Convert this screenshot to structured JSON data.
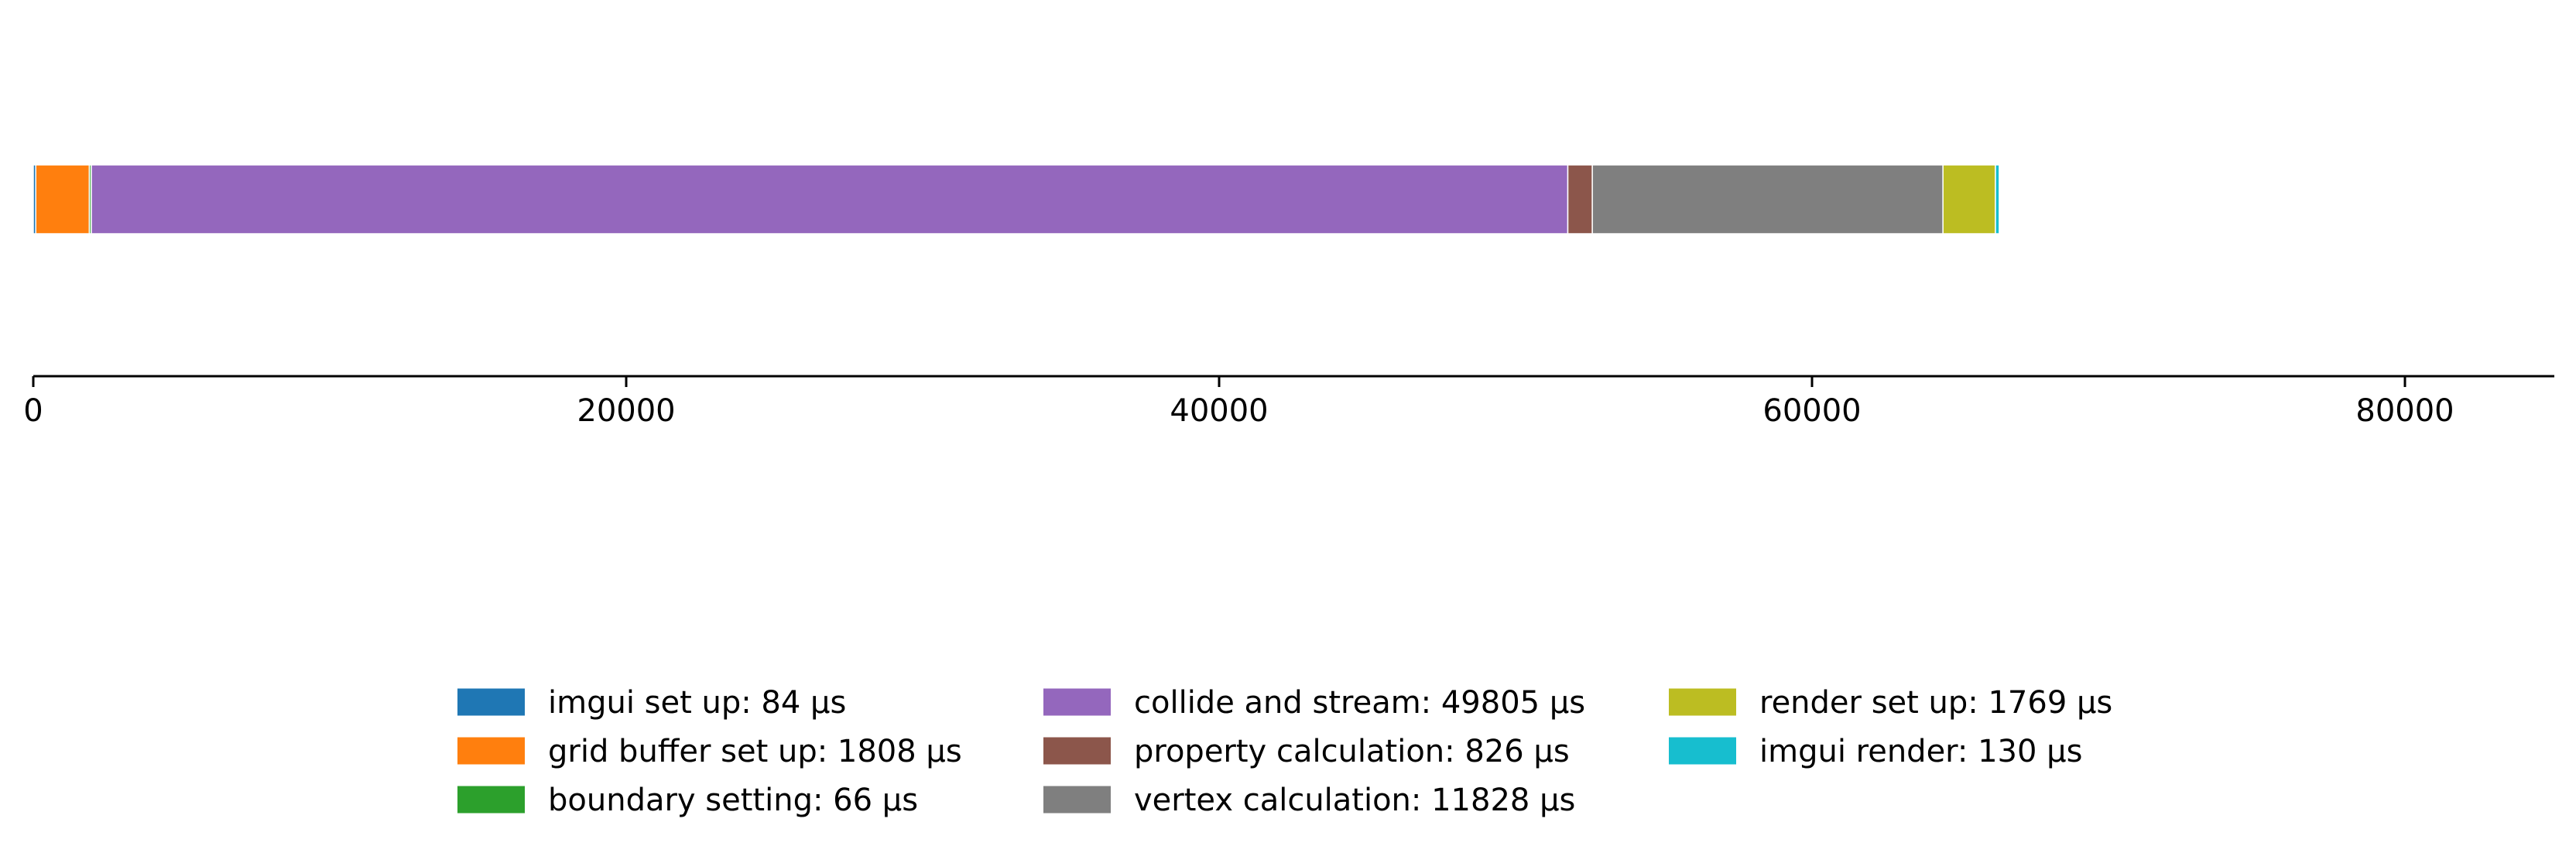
{
  "chart_data": {
    "type": "bar",
    "orientation": "horizontal",
    "stacked": true,
    "title": "",
    "xlabel": "",
    "ylabel": "",
    "xlim": [
      0,
      170000
    ],
    "x_ticks": [
      0,
      20000,
      40000,
      60000,
      80000,
      100000,
      120000,
      140000,
      160000
    ],
    "grid": false,
    "legend_position": "bottom-center",
    "legend_columns": 3,
    "series": [
      {
        "name": "imgui set up: 84 µs",
        "value": 84,
        "color": "#1f77b4"
      },
      {
        "name": "grid buffer set up: 1808 µs",
        "value": 1808,
        "color": "#ff7f0e"
      },
      {
        "name": "boundary setting: 66 µs",
        "value": 66,
        "color": "#2ca02c"
      },
      {
        "name": "collide and stream: 49805 µs",
        "value": 49805,
        "color": "#9467bd"
      },
      {
        "name": "property calculation: 826 µs",
        "value": 826,
        "color": "#8c564b"
      },
      {
        "name": "vertex calculation: 11828 µs",
        "value": 11828,
        "color": "#7f7f7f"
      },
      {
        "name": "render set up: 1769 µs",
        "value": 1769,
        "color": "#bcbd22"
      },
      {
        "name": "imgui render: 130 µs",
        "value": 130,
        "color": "#17becf"
      }
    ]
  }
}
